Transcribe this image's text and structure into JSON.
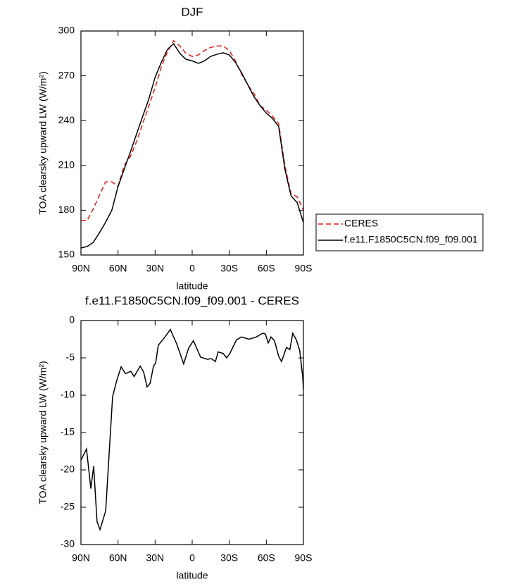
{
  "chart_data": [
    {
      "type": "line",
      "title": "DJF",
      "xlabel": "latitude",
      "ylabel": "TOA clearsky upward LW (W/m²)",
      "x": [
        90,
        85,
        80,
        75,
        70,
        65,
        60,
        55,
        50,
        45,
        40,
        35,
        30,
        25,
        20,
        15,
        10,
        5,
        0,
        -5,
        -10,
        -15,
        -20,
        -25,
        -30,
        -35,
        -40,
        -45,
        -50,
        -55,
        -60,
        -65,
        -70,
        -75,
        -80,
        -85,
        -90
      ],
      "series": [
        {
          "name": "CERES",
          "color": "#e41a1c",
          "linestyle": "dashed",
          "values": [
            173,
            173,
            181,
            190,
            199,
            199,
            196,
            210,
            216,
            226,
            238,
            250,
            262,
            276,
            286,
            293.5,
            290,
            285,
            283,
            284,
            287,
            289,
            290,
            290,
            287,
            280,
            271,
            264,
            258,
            250,
            247,
            243,
            238,
            210,
            191,
            189,
            180
          ]
        },
        {
          "name": "f.e11.F1850C5CN.f09_f09.001",
          "color": "#000000",
          "linestyle": "solid",
          "values": [
            154.7,
            155.7,
            158.5,
            165,
            172,
            180,
            195.8,
            207.5,
            219,
            231,
            243,
            254.7,
            269,
            279,
            287.7,
            291.5,
            285,
            281,
            280,
            278.3,
            280,
            283,
            284.4,
            285.4,
            284,
            279,
            272,
            264,
            256,
            250,
            245,
            241.5,
            236,
            207.5,
            189.6,
            185,
            171.7
          ]
        }
      ],
      "xlim": [
        90,
        -90
      ],
      "xticks": [
        {
          "value": 90,
          "label": "90N"
        },
        {
          "value": 60,
          "label": "60N"
        },
        {
          "value": 30,
          "label": "30N"
        },
        0,
        {
          "value": -30,
          "label": "30S"
        },
        {
          "value": -60,
          "label": "60S"
        },
        {
          "value": -90,
          "label": "90S"
        }
      ],
      "ylim": [
        150,
        300
      ],
      "yticks": [
        150,
        180,
        210,
        240,
        270,
        300
      ],
      "legend": "outside right"
    },
    {
      "type": "line",
      "title": "f.e11.F1850C5CN.f09_f09.001 - CERES",
      "xlabel": "latitude",
      "ylabel": "TOA clearsky upward LW (W/m²)",
      "x": [
        90,
        85.5,
        82,
        79.7,
        77,
        74.6,
        70,
        64.4,
        61,
        57.5,
        54,
        49.6,
        47,
        42,
        39.3,
        36.5,
        34,
        31.3,
        29.6,
        27.4,
        22,
        17.7,
        12.6,
        6.9,
        2.9,
        -1,
        -6.8,
        -12.4,
        -15.5,
        -18.8,
        -21,
        -25,
        -27.9,
        -30.5,
        -35.8,
        -39.8,
        -46,
        -52,
        -57,
        -59.2,
        -61.5,
        -63.8,
        -66.6,
        -70,
        -72.3,
        -76.3,
        -79,
        -81.4,
        -84.3,
        -87,
        -89.4,
        -90
      ],
      "values": [
        -18.7,
        -17.2,
        -22.5,
        -19.5,
        -26.9,
        -28,
        -25.5,
        -10.2,
        -8,
        -6.2,
        -7.1,
        -6.8,
        -7.5,
        -6.1,
        -6.9,
        -8.9,
        -8.4,
        -6.1,
        -5.7,
        -3.3,
        -2.2,
        -1.2,
        -3.1,
        -5.8,
        -3.7,
        -2.7,
        -4.9,
        -5.2,
        -5.1,
        -5.5,
        -4.2,
        -4.4,
        -5,
        -4.4,
        -2.6,
        -2.2,
        -2.5,
        -2.2,
        -1.7,
        -1.8,
        -3,
        -2.2,
        -2.7,
        -4.8,
        -5.5,
        -3.6,
        -3.9,
        -1.7,
        -2.6,
        -4,
        -7.5,
        -9.2
      ],
      "color": "#000000",
      "xlim": [
        90,
        -90
      ],
      "xticks": [
        {
          "value": 90,
          "label": "90N"
        },
        {
          "value": 60,
          "label": "60N"
        },
        {
          "value": 30,
          "label": "30N"
        },
        0,
        {
          "value": -30,
          "label": "30S"
        },
        {
          "value": -60,
          "label": "60S"
        },
        {
          "value": -90,
          "label": "90S"
        }
      ],
      "ylim": [
        -30,
        0
      ],
      "yticks": [
        -30,
        -25,
        -20,
        -15,
        -10,
        -5,
        0
      ]
    }
  ]
}
